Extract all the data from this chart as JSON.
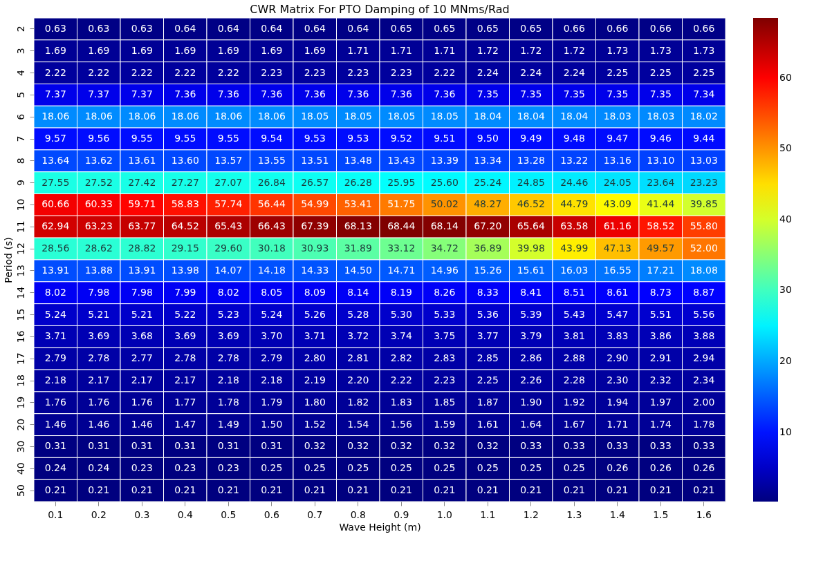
{
  "chart_data": {
    "type": "heatmap",
    "title": "CWR Matrix For PTO Damping of 10 MNms/Rad",
    "xlabel": "Wave Height (m)",
    "ylabel": "Period (s)",
    "categories": [
      "0.1",
      "0.2",
      "0.3",
      "0.4",
      "0.5",
      "0.6",
      "0.7",
      "0.8",
      "0.9",
      "1.0",
      "1.1",
      "1.2",
      "1.3",
      "1.4",
      "1.5",
      "1.6"
    ],
    "y_categories": [
      "2",
      "3",
      "4",
      "5",
      "6",
      "7",
      "8",
      "9",
      "10",
      "11",
      "12",
      "13",
      "14",
      "15",
      "16",
      "17",
      "18",
      "19",
      "20",
      "30",
      "40",
      "50"
    ],
    "cells": [
      [
        0.63,
        0.63,
        0.63,
        0.64,
        0.64,
        0.64,
        0.64,
        0.64,
        0.65,
        0.65,
        0.65,
        0.65,
        0.66,
        0.66,
        0.66,
        0.66
      ],
      [
        1.69,
        1.69,
        1.69,
        1.69,
        1.69,
        1.69,
        1.69,
        1.71,
        1.71,
        1.71,
        1.72,
        1.72,
        1.72,
        1.73,
        1.73,
        1.73
      ],
      [
        2.22,
        2.22,
        2.22,
        2.22,
        2.22,
        2.23,
        2.23,
        2.23,
        2.23,
        2.22,
        2.24,
        2.24,
        2.24,
        2.25,
        2.25,
        2.25
      ],
      [
        7.37,
        7.37,
        7.37,
        7.36,
        7.36,
        7.36,
        7.36,
        7.36,
        7.36,
        7.36,
        7.35,
        7.35,
        7.35,
        7.35,
        7.35,
        7.34
      ],
      [
        18.06,
        18.06,
        18.06,
        18.06,
        18.06,
        18.06,
        18.05,
        18.05,
        18.05,
        18.05,
        18.04,
        18.04,
        18.04,
        18.03,
        18.03,
        18.02
      ],
      [
        9.57,
        9.56,
        9.55,
        9.55,
        9.55,
        9.54,
        9.53,
        9.53,
        9.52,
        9.51,
        9.5,
        9.49,
        9.48,
        9.47,
        9.46,
        9.44
      ],
      [
        13.64,
        13.62,
        13.61,
        13.6,
        13.57,
        13.55,
        13.51,
        13.48,
        13.43,
        13.39,
        13.34,
        13.28,
        13.22,
        13.16,
        13.1,
        13.03
      ],
      [
        27.55,
        27.52,
        27.42,
        27.27,
        27.07,
        26.84,
        26.57,
        26.28,
        25.95,
        25.6,
        25.24,
        24.85,
        24.46,
        24.05,
        23.64,
        23.23
      ],
      [
        60.66,
        60.33,
        59.71,
        58.83,
        57.74,
        56.44,
        54.99,
        53.41,
        51.75,
        50.02,
        48.27,
        46.52,
        44.79,
        43.09,
        41.44,
        39.85
      ],
      [
        62.94,
        63.23,
        63.77,
        64.52,
        65.43,
        66.43,
        67.39,
        68.13,
        68.44,
        68.14,
        67.2,
        65.64,
        63.58,
        61.16,
        58.52,
        55.8
      ],
      [
        28.56,
        28.62,
        28.82,
        29.15,
        29.6,
        30.18,
        30.93,
        31.89,
        33.12,
        34.72,
        36.89,
        39.98,
        43.99,
        47.13,
        49.57,
        52.0
      ],
      [
        13.91,
        13.88,
        13.91,
        13.98,
        14.07,
        14.18,
        14.33,
        14.5,
        14.71,
        14.96,
        15.26,
        15.61,
        16.03,
        16.55,
        17.21,
        18.08
      ],
      [
        8.02,
        7.98,
        7.98,
        7.99,
        8.02,
        8.05,
        8.09,
        8.14,
        8.19,
        8.26,
        8.33,
        8.41,
        8.51,
        8.61,
        8.73,
        8.87
      ],
      [
        5.24,
        5.21,
        5.21,
        5.22,
        5.23,
        5.24,
        5.26,
        5.28,
        5.3,
        5.33,
        5.36,
        5.39,
        5.43,
        5.47,
        5.51,
        5.56
      ],
      [
        3.71,
        3.69,
        3.68,
        3.69,
        3.69,
        3.7,
        3.71,
        3.72,
        3.74,
        3.75,
        3.77,
        3.79,
        3.81,
        3.83,
        3.86,
        3.88
      ],
      [
        2.79,
        2.78,
        2.77,
        2.78,
        2.78,
        2.79,
        2.8,
        2.81,
        2.82,
        2.83,
        2.85,
        2.86,
        2.88,
        2.9,
        2.91,
        2.94
      ],
      [
        2.18,
        2.17,
        2.17,
        2.17,
        2.18,
        2.18,
        2.19,
        2.2,
        2.22,
        2.23,
        2.25,
        2.26,
        2.28,
        2.3,
        2.32,
        2.34
      ],
      [
        1.76,
        1.76,
        1.76,
        1.77,
        1.78,
        1.79,
        1.8,
        1.82,
        1.83,
        1.85,
        1.87,
        1.9,
        1.92,
        1.94,
        1.97,
        2.0
      ],
      [
        1.46,
        1.46,
        1.46,
        1.47,
        1.49,
        1.5,
        1.52,
        1.54,
        1.56,
        1.59,
        1.61,
        1.64,
        1.67,
        1.71,
        1.74,
        1.78
      ],
      [
        0.31,
        0.31,
        0.31,
        0.31,
        0.31,
        0.31,
        0.32,
        0.32,
        0.32,
        0.32,
        0.32,
        0.33,
        0.33,
        0.33,
        0.33,
        0.33
      ],
      [
        0.24,
        0.24,
        0.23,
        0.23,
        0.23,
        0.25,
        0.25,
        0.25,
        0.25,
        0.25,
        0.25,
        0.25,
        0.25,
        0.26,
        0.26,
        0.26
      ],
      [
        0.21,
        0.21,
        0.21,
        0.21,
        0.21,
        0.21,
        0.21,
        0.21,
        0.21,
        0.21,
        0.21,
        0.21,
        0.21,
        0.21,
        0.21,
        0.21
      ]
    ],
    "cell_labels": [
      [
        "0.63",
        "0.63",
        "0.63",
        "0.64",
        "0.64",
        "0.64",
        "0.64",
        "0.64",
        "0.65",
        "0.65",
        "0.65",
        "0.65",
        "0.66",
        "0.66",
        "0.66",
        "0.66"
      ],
      [
        "1.69",
        "1.69",
        "1.69",
        "1.69",
        "1.69",
        "1.69",
        "1.69",
        "1.71",
        "1.71",
        "1.71",
        "1.72",
        "1.72",
        "1.72",
        "1.73",
        "1.73",
        "1.73"
      ],
      [
        "2.22",
        "2.22",
        "2.22",
        "2.22",
        "2.22",
        "2.23",
        "2.23",
        "2.23",
        "2.23",
        "2.22",
        "2.24",
        "2.24",
        "2.24",
        "2.25",
        "2.25",
        "2.25"
      ],
      [
        "7.37",
        "7.37",
        "7.37",
        "7.36",
        "7.36",
        "7.36",
        "7.36",
        "7.36",
        "7.36",
        "7.36",
        "7.35",
        "7.35",
        "7.35",
        "7.35",
        "7.35",
        "7.34"
      ],
      [
        "18.06",
        "18.06",
        "18.06",
        "18.06",
        "18.06",
        "18.06",
        "18.05",
        "18.05",
        "18.05",
        "18.05",
        "18.04",
        "18.04",
        "18.04",
        "18.03",
        "18.03",
        "18.02"
      ],
      [
        "9.57",
        "9.56",
        "9.55",
        "9.55",
        "9.55",
        "9.54",
        "9.53",
        "9.53",
        "9.52",
        "9.51",
        "9.50",
        "9.49",
        "9.48",
        "9.47",
        "9.46",
        "9.44"
      ],
      [
        "13.64",
        "13.62",
        "13.61",
        "13.60",
        "13.57",
        "13.55",
        "13.51",
        "13.48",
        "13.43",
        "13.39",
        "13.34",
        "13.28",
        "13.22",
        "13.16",
        "13.10",
        "13.03"
      ],
      [
        "27.55",
        "27.52",
        "27.42",
        "27.27",
        "27.07",
        "26.84",
        "26.57",
        "26.28",
        "25.95",
        "25.60",
        "25.24",
        "24.85",
        "24.46",
        "24.05",
        "23.64",
        "23.23"
      ],
      [
        "60.66",
        "60.33",
        "59.71",
        "58.83",
        "57.74",
        "56.44",
        "54.99",
        "53.41",
        "51.75",
        "50.02",
        "48.27",
        "46.52",
        "44.79",
        "43.09",
        "41.44",
        "39.85"
      ],
      [
        "62.94",
        "63.23",
        "63.77",
        "64.52",
        "65.43",
        "66.43",
        "67.39",
        "68.13",
        "68.44",
        "68.14",
        "67.20",
        "65.64",
        "63.58",
        "61.16",
        "58.52",
        "55.80"
      ],
      [
        "28.56",
        "28.62",
        "28.82",
        "29.15",
        "29.60",
        "30.18",
        "30.93",
        "31.89",
        "33.12",
        "34.72",
        "36.89",
        "39.98",
        "43.99",
        "47.13",
        "49.57",
        "52.00"
      ],
      [
        "13.91",
        "13.88",
        "13.91",
        "13.98",
        "14.07",
        "14.18",
        "14.33",
        "14.50",
        "14.71",
        "14.96",
        "15.26",
        "15.61",
        "16.03",
        "16.55",
        "17.21",
        "18.08"
      ],
      [
        "8.02",
        "7.98",
        "7.98",
        "7.99",
        "8.02",
        "8.05",
        "8.09",
        "8.14",
        "8.19",
        "8.26",
        "8.33",
        "8.41",
        "8.51",
        "8.61",
        "8.73",
        "8.87"
      ],
      [
        "5.24",
        "5.21",
        "5.21",
        "5.22",
        "5.23",
        "5.24",
        "5.26",
        "5.28",
        "5.30",
        "5.33",
        "5.36",
        "5.39",
        "5.43",
        "5.47",
        "5.51",
        "5.56"
      ],
      [
        "3.71",
        "3.69",
        "3.68",
        "3.69",
        "3.69",
        "3.70",
        "3.71",
        "3.72",
        "3.74",
        "3.75",
        "3.77",
        "3.79",
        "3.81",
        "3.83",
        "3.86",
        "3.88"
      ],
      [
        "2.79",
        "2.78",
        "2.77",
        "2.78",
        "2.78",
        "2.79",
        "2.80",
        "2.81",
        "2.82",
        "2.83",
        "2.85",
        "2.86",
        "2.88",
        "2.90",
        "2.91",
        "2.94"
      ],
      [
        "2.18",
        "2.17",
        "2.17",
        "2.17",
        "2.18",
        "2.18",
        "2.19",
        "2.20",
        "2.22",
        "2.23",
        "2.25",
        "2.26",
        "2.28",
        "2.30",
        "2.32",
        "2.34"
      ],
      [
        "1.76",
        "1.76",
        "1.76",
        "1.77",
        "1.78",
        "1.79",
        "1.80",
        "1.82",
        "1.83",
        "1.85",
        "1.87",
        "1.90",
        "1.92",
        "1.94",
        "1.97",
        "2.00"
      ],
      [
        "1.46",
        "1.46",
        "1.46",
        "1.47",
        "1.49",
        "1.50",
        "1.52",
        "1.54",
        "1.56",
        "1.59",
        "1.61",
        "1.64",
        "1.67",
        "1.71",
        "1.74",
        "1.78"
      ],
      [
        "0.31",
        "0.31",
        "0.31",
        "0.31",
        "0.31",
        "0.31",
        "0.32",
        "0.32",
        "0.32",
        "0.32",
        "0.32",
        "0.33",
        "0.33",
        "0.33",
        "0.33",
        "0.33"
      ],
      [
        "0.24",
        "0.24",
        "0.23",
        "0.23",
        "0.23",
        "0.25",
        "0.25",
        "0.25",
        "0.25",
        "0.25",
        "0.25",
        "0.25",
        "0.25",
        "0.26",
        "0.26",
        "0.26"
      ],
      [
        "0.21",
        "0.21",
        "0.21",
        "0.21",
        "0.21",
        "0.21",
        "0.21",
        "0.21",
        "0.21",
        "0.21",
        "0.21",
        "0.21",
        "0.21",
        "0.21",
        "0.21",
        "0.21"
      ]
    ],
    "clim": [
      0.21,
      68.44
    ],
    "cticks": [
      10,
      20,
      30,
      40,
      50,
      60
    ],
    "data_labels": true
  }
}
